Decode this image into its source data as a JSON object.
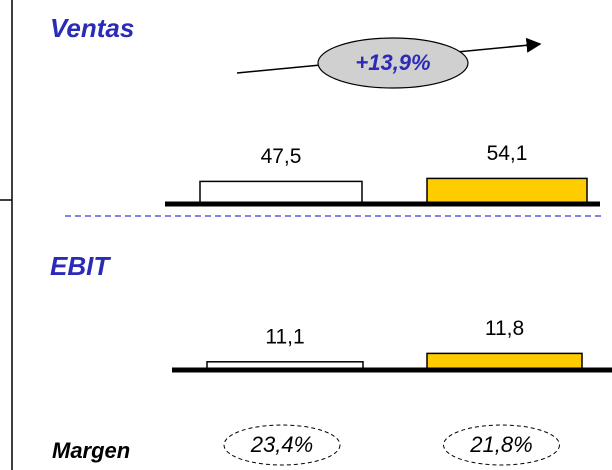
{
  "chart_data": [
    {
      "type": "bar",
      "title": "Ventas",
      "categories": [
        null,
        null
      ],
      "values": [
        47.5,
        54.1
      ],
      "value_labels": [
        "47,5",
        "54,1"
      ],
      "colors": [
        "#ffffff",
        "#ffcc00"
      ],
      "ylim": [
        0,
        110
      ],
      "annotation": {
        "value": 13.9,
        "label": "+13,9%"
      }
    },
    {
      "type": "bar",
      "title": "EBIT",
      "categories": [
        null,
        null
      ],
      "values": [
        11.1,
        11.8
      ],
      "value_labels": [
        "11,1",
        "11,8"
      ],
      "colors": [
        "#ffffff",
        "#ffcc00"
      ],
      "ylim": [
        10.5,
        12
      ],
      "margin_label": "Margen",
      "margin_values": [
        23.4,
        21.8
      ],
      "margin_value_labels": [
        "23,4%",
        "21,8%"
      ]
    }
  ]
}
